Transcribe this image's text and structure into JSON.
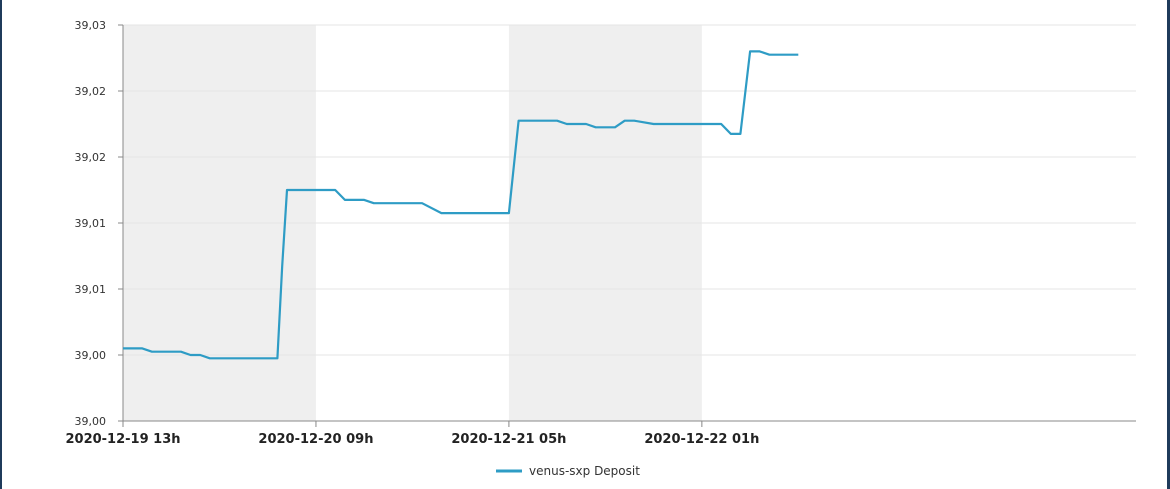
{
  "colors": {
    "series": "#2e9cc5",
    "band": "#efefef",
    "grid": "#e6e6e6",
    "axis": "#888888"
  },
  "chart_data": {
    "type": "line",
    "grid": true,
    "legend_position": "bottom-center",
    "y_tick_labels": [
      "39,00",
      "39,00",
      "39,01",
      "39,01",
      "39,02",
      "39,02",
      "39,03"
    ],
    "y_tick_values": [
      38.9988,
      39.0008,
      39.0028,
      39.0048,
      39.0068,
      39.0088,
      39.0108
    ],
    "ylim": [
      38.9988,
      39.0108
    ],
    "x_range_hours": [
      0,
      105
    ],
    "x_tick_labels": [
      "2020-12-19 13h",
      "2020-12-20 09h",
      "2020-12-21 05h",
      "2020-12-22 01h"
    ],
    "x_tick_hours": [
      0,
      20,
      40,
      60
    ],
    "shaded_bands_hours": [
      [
        0,
        20
      ],
      [
        40,
        60
      ]
    ],
    "series": [
      {
        "name": "venus-sxp Deposit",
        "x_hours": [
          0,
          2,
          3,
          6,
          7,
          8,
          9,
          10,
          11,
          12,
          13,
          14,
          15,
          16,
          16.5,
          17,
          22,
          23,
          25,
          26,
          27,
          31,
          33,
          39,
          40,
          41,
          42,
          45,
          46,
          48,
          49,
          51,
          52,
          53,
          55,
          56,
          57,
          61,
          62,
          63,
          64,
          65,
          66,
          67,
          69,
          70
        ],
        "y": [
          39.001,
          39.001,
          39.0009,
          39.0009,
          39.0008,
          39.0008,
          39.0007,
          39.0007,
          39.0007,
          39.0007,
          39.0007,
          39.0007,
          39.0007,
          39.0007,
          39.0035,
          39.0058,
          39.0058,
          39.0055,
          39.0055,
          39.0054,
          39.0054,
          39.0054,
          39.0051,
          39.0051,
          39.0051,
          39.0079,
          39.0079,
          39.0079,
          39.0078,
          39.0078,
          39.0077,
          39.0077,
          39.0079,
          39.0079,
          39.0078,
          39.0078,
          39.0078,
          39.0078,
          39.0078,
          39.0075,
          39.0075,
          39.01,
          39.01,
          39.0099,
          39.0099,
          39.0099
        ]
      }
    ]
  }
}
